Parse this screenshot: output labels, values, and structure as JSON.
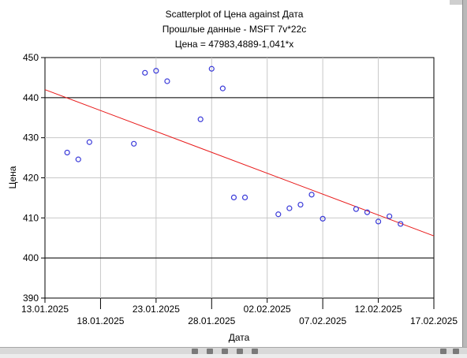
{
  "chart_data": {
    "type": "scatter",
    "title": "Scatterplot of Цена against Дата",
    "subtitle": "Прошлые данные - MSFT 7v*22c",
    "equation": "Цена = 47983,4889-1,041*x",
    "xlabel": "Дата",
    "ylabel": "Цена",
    "xlim": [
      "13.01.2025",
      "17.02.2025"
    ],
    "ylim": [
      390,
      450
    ],
    "x_tick_labels": [
      "13.01.2025",
      "18.01.2025",
      "23.01.2025",
      "28.01.2025",
      "02.02.2025",
      "07.02.2025",
      "12.02.2025",
      "17.02.2025"
    ],
    "y_tick_labels": [
      "390",
      "400",
      "410",
      "420",
      "430",
      "440",
      "450"
    ],
    "reference_lines_y": [
      400,
      440
    ],
    "grid": true,
    "points": [
      {
        "x": "15.01.2025",
        "y": 426.3
      },
      {
        "x": "16.01.2025",
        "y": 424.6
      },
      {
        "x": "17.01.2025",
        "y": 428.9
      },
      {
        "x": "21.01.2025",
        "y": 428.5
      },
      {
        "x": "22.01.2025",
        "y": 446.2
      },
      {
        "x": "23.01.2025",
        "y": 446.7
      },
      {
        "x": "24.01.2025",
        "y": 444.1
      },
      {
        "x": "27.01.2025",
        "y": 434.6
      },
      {
        "x": "28.01.2025",
        "y": 447.2
      },
      {
        "x": "29.01.2025",
        "y": 442.3
      },
      {
        "x": "30.01.2025",
        "y": 415.1
      },
      {
        "x": "31.01.2025",
        "y": 415.1
      },
      {
        "x": "03.02.2025",
        "y": 410.9
      },
      {
        "x": "04.02.2025",
        "y": 412.4
      },
      {
        "x": "05.02.2025",
        "y": 413.3
      },
      {
        "x": "06.02.2025",
        "y": 415.8
      },
      {
        "x": "07.02.2025",
        "y": 409.8
      },
      {
        "x": "10.02.2025",
        "y": 412.2
      },
      {
        "x": "11.02.2025",
        "y": 411.4
      },
      {
        "x": "12.02.2025",
        "y": 409.1
      },
      {
        "x": "13.02.2025",
        "y": 410.4
      },
      {
        "x": "14.02.2025",
        "y": 408.5
      }
    ],
    "regression": {
      "x_start": "13.01.2025",
      "y_start": 442.0,
      "x_end": "17.02.2025",
      "y_end": 405.5
    },
    "colors": {
      "points": "#3b3bd9",
      "regression": "#e81818",
      "reference_lines": "#000000",
      "grid": "#c8c8c8"
    }
  }
}
